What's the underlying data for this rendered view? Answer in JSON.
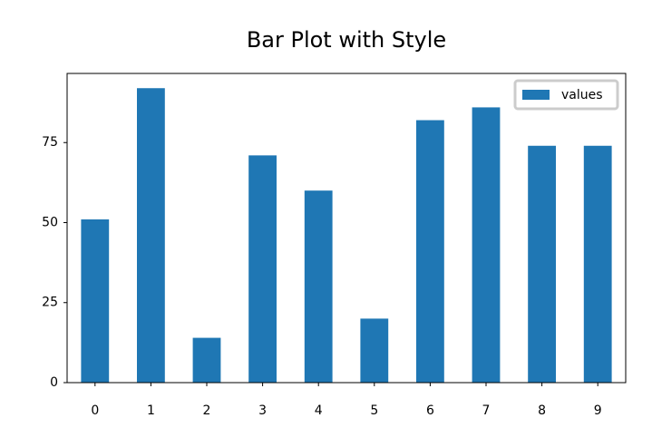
{
  "chart_data": {
    "type": "bar",
    "title": "Bar Plot with Style",
    "categories": [
      "0",
      "1",
      "2",
      "3",
      "4",
      "5",
      "6",
      "7",
      "8",
      "9"
    ],
    "series": [
      {
        "name": "values",
        "color": "#1f77b4",
        "values": [
          51,
          92,
          14,
          71,
          60,
          20,
          82,
          86,
          74,
          74
        ]
      }
    ],
    "ylim": [
      0,
      96.6
    ],
    "yticks": [
      0,
      25,
      50,
      75
    ],
    "grid": false,
    "legend": "upper right"
  }
}
